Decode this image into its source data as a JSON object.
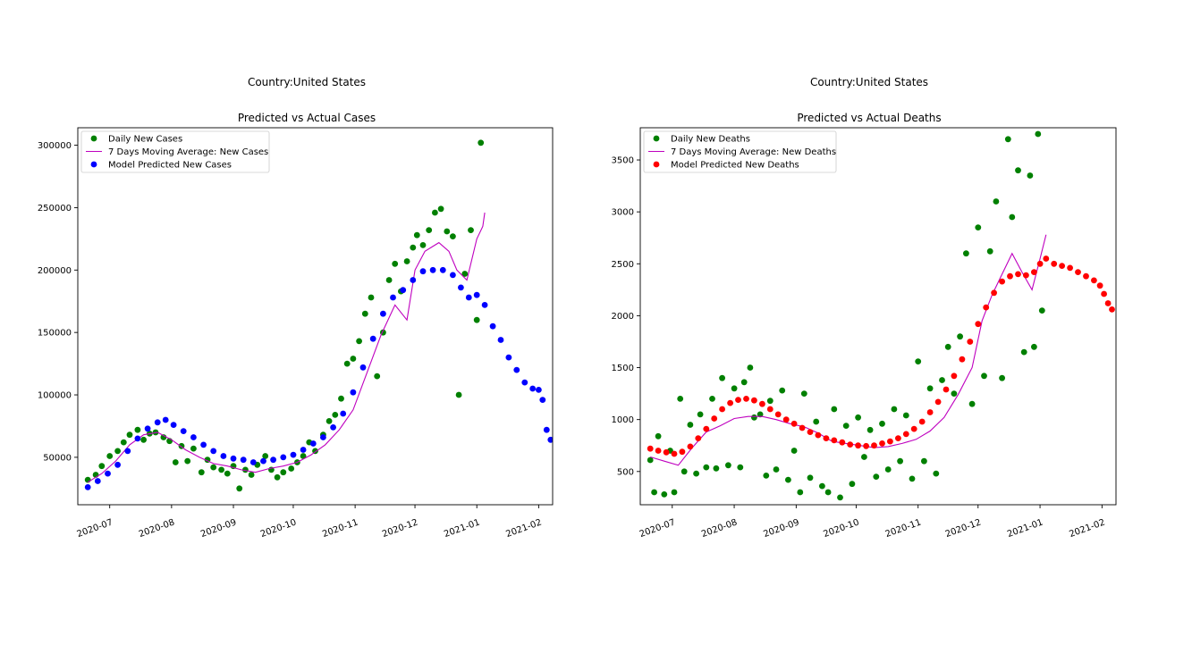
{
  "chart_data": [
    {
      "type": "scatter",
      "suptitle": "Country:United States",
      "title": "Predicted vs Actual Cases",
      "xlabel": "",
      "ylabel": "",
      "x_axis_type": "date",
      "xlim": [
        "2020-06-15",
        "2021-02-08"
      ],
      "ylim": [
        12000,
        314000
      ],
      "x_ticks": [
        "2020-07-01",
        "2020-08-01",
        "2020-09-01",
        "2020-10-01",
        "2020-11-01",
        "2020-12-01",
        "2021-01-01",
        "2021-02-01"
      ],
      "x_tick_labels": [
        "2020-07",
        "2020-08",
        "2020-09",
        "2020-10",
        "2020-11",
        "2020-12",
        "2021-01",
        "2021-02"
      ],
      "y_ticks": [
        50000,
        100000,
        150000,
        200000,
        250000,
        300000
      ],
      "y_tick_labels": [
        "50000",
        "100000",
        "150000",
        "200000",
        "250000",
        "300000"
      ],
      "grid": false,
      "legend_position": "top-left",
      "legend": [
        {
          "label": "Daily New Cases",
          "marker": "dot",
          "color": "#008000"
        },
        {
          "label": "7 Days Moving Average: New Cases",
          "marker": "line",
          "color": "#bf00bf"
        },
        {
          "label": "Model Predicted New Cases",
          "marker": "dot",
          "color": "#0000ff"
        }
      ],
      "series": [
        {
          "name": "Daily New Cases",
          "kind": "scatter",
          "color": "#008000",
          "x": [
            "2020-06-20",
            "2020-06-24",
            "2020-06-27",
            "2020-07-01",
            "2020-07-05",
            "2020-07-08",
            "2020-07-11",
            "2020-07-15",
            "2020-07-18",
            "2020-07-21",
            "2020-07-24",
            "2020-07-28",
            "2020-07-31",
            "2020-08-03",
            "2020-08-06",
            "2020-08-09",
            "2020-08-12",
            "2020-08-16",
            "2020-08-19",
            "2020-08-22",
            "2020-08-26",
            "2020-08-29",
            "2020-09-01",
            "2020-09-04",
            "2020-09-07",
            "2020-09-10",
            "2020-09-13",
            "2020-09-17",
            "2020-09-20",
            "2020-09-23",
            "2020-09-26",
            "2020-09-30",
            "2020-10-03",
            "2020-10-06",
            "2020-10-09",
            "2020-10-12",
            "2020-10-16",
            "2020-10-19",
            "2020-10-22",
            "2020-10-25",
            "2020-10-28",
            "2020-10-31",
            "2020-11-03",
            "2020-11-06",
            "2020-11-09",
            "2020-11-12",
            "2020-11-15",
            "2020-11-18",
            "2020-11-21",
            "2020-11-24",
            "2020-11-27",
            "2020-11-30",
            "2020-12-02",
            "2020-12-05",
            "2020-12-08",
            "2020-12-11",
            "2020-12-14",
            "2020-12-17",
            "2020-12-20",
            "2020-12-23",
            "2020-12-26",
            "2020-12-29",
            "2021-01-01",
            "2021-01-03"
          ],
          "y": [
            32000,
            36000,
            43000,
            51000,
            55000,
            62000,
            68000,
            72000,
            64000,
            69000,
            70000,
            66000,
            63000,
            46000,
            59000,
            47000,
            57000,
            38000,
            48000,
            42000,
            40000,
            37000,
            43000,
            25000,
            40000,
            36000,
            44000,
            51000,
            40000,
            34000,
            38000,
            41000,
            46000,
            51000,
            62000,
            55000,
            68000,
            79000,
            84000,
            97000,
            125000,
            129000,
            143000,
            165000,
            178000,
            115000,
            150000,
            192000,
            205000,
            183000,
            207000,
            218000,
            228000,
            220000,
            232000,
            246000,
            249000,
            231000,
            227000,
            100000,
            197000,
            232000,
            160000,
            302000
          ]
        },
        {
          "name": "7 Days Moving Average: New Cases",
          "kind": "line",
          "color": "#bf00bf",
          "x": [
            "2020-06-20",
            "2020-06-27",
            "2020-07-04",
            "2020-07-11",
            "2020-07-18",
            "2020-07-25",
            "2020-08-01",
            "2020-08-08",
            "2020-08-15",
            "2020-08-22",
            "2020-08-29",
            "2020-09-05",
            "2020-09-12",
            "2020-09-19",
            "2020-09-26",
            "2020-10-03",
            "2020-10-10",
            "2020-10-17",
            "2020-10-24",
            "2020-10-31",
            "2020-11-07",
            "2020-11-14",
            "2020-11-21",
            "2020-11-27",
            "2020-12-01",
            "2020-12-06",
            "2020-12-13",
            "2020-12-18",
            "2020-12-22",
            "2020-12-27",
            "2021-01-01",
            "2021-01-04",
            "2021-01-05"
          ],
          "y": [
            30000,
            37000,
            47000,
            60000,
            68000,
            70000,
            64000,
            56000,
            50000,
            45000,
            43000,
            40000,
            38000,
            41000,
            43000,
            46000,
            52000,
            60000,
            72000,
            88000,
            118000,
            148000,
            172000,
            160000,
            200000,
            215000,
            222000,
            215000,
            200000,
            192000,
            225000,
            235000,
            246000
          ]
        },
        {
          "name": "Model Predicted New Cases",
          "kind": "scatter",
          "color": "#0000ff",
          "x": [
            "2020-06-20",
            "2020-06-25",
            "2020-06-30",
            "2020-07-05",
            "2020-07-10",
            "2020-07-15",
            "2020-07-20",
            "2020-07-25",
            "2020-07-29",
            "2020-08-02",
            "2020-08-07",
            "2020-08-12",
            "2020-08-17",
            "2020-08-22",
            "2020-08-27",
            "2020-09-01",
            "2020-09-06",
            "2020-09-11",
            "2020-09-16",
            "2020-09-21",
            "2020-09-26",
            "2020-10-01",
            "2020-10-06",
            "2020-10-11",
            "2020-10-16",
            "2020-10-21",
            "2020-10-26",
            "2020-10-31",
            "2020-11-05",
            "2020-11-10",
            "2020-11-15",
            "2020-11-20",
            "2020-11-25",
            "2020-11-30",
            "2020-12-05",
            "2020-12-10",
            "2020-12-15",
            "2020-12-20",
            "2020-12-24",
            "2020-12-28",
            "2021-01-01",
            "2021-01-05",
            "2021-01-09",
            "2021-01-13",
            "2021-01-17",
            "2021-01-21",
            "2021-01-25",
            "2021-01-29",
            "2021-02-01",
            "2021-02-03",
            "2021-02-05",
            "2021-02-07"
          ],
          "y": [
            26000,
            31000,
            37000,
            44000,
            55000,
            65000,
            73000,
            78000,
            80000,
            76000,
            71000,
            66000,
            60000,
            55000,
            51000,
            49000,
            48000,
            46000,
            47000,
            48000,
            50000,
            52000,
            56000,
            61000,
            66000,
            74000,
            85000,
            102000,
            122000,
            145000,
            165000,
            178000,
            184000,
            192000,
            199000,
            200000,
            200000,
            196000,
            186000,
            178000,
            180000,
            172000,
            155000,
            144000,
            130000,
            120000,
            110000,
            105000,
            104000,
            96000,
            72000,
            64000
          ]
        }
      ]
    },
    {
      "type": "scatter",
      "suptitle": "Country:United States",
      "title": "Predicted vs Actual Deaths",
      "xlabel": "",
      "ylabel": "",
      "x_axis_type": "date",
      "xlim": [
        "2020-06-15",
        "2021-02-08"
      ],
      "ylim": [
        180,
        3810
      ],
      "x_ticks": [
        "2020-07-01",
        "2020-08-01",
        "2020-09-01",
        "2020-10-01",
        "2020-11-01",
        "2020-12-01",
        "2021-01-01",
        "2021-02-01"
      ],
      "x_tick_labels": [
        "2020-07",
        "2020-08",
        "2020-09",
        "2020-10",
        "2020-11",
        "2020-12",
        "2021-01",
        "2021-02"
      ],
      "y_ticks": [
        500,
        1000,
        1500,
        2000,
        2500,
        3000,
        3500
      ],
      "y_tick_labels": [
        "500",
        "1000",
        "1500",
        "2000",
        "2500",
        "3000",
        "3500"
      ],
      "grid": false,
      "legend_position": "top-left",
      "legend": [
        {
          "label": "Daily New Deaths",
          "marker": "dot",
          "color": "#008000"
        },
        {
          "label": "7 Days Moving Average: New Deaths",
          "marker": "line",
          "color": "#bf00bf"
        },
        {
          "label": "Model Predicted New Deaths",
          "marker": "dot",
          "color": "#ff0000"
        }
      ],
      "series": [
        {
          "name": "Daily New Deaths",
          "kind": "scatter",
          "color": "#008000",
          "x": [
            "2020-06-20",
            "2020-06-22",
            "2020-06-24",
            "2020-06-27",
            "2020-06-30",
            "2020-07-02",
            "2020-07-05",
            "2020-07-07",
            "2020-07-10",
            "2020-07-13",
            "2020-07-15",
            "2020-07-18",
            "2020-07-21",
            "2020-07-23",
            "2020-07-26",
            "2020-07-29",
            "2020-08-01",
            "2020-08-04",
            "2020-08-06",
            "2020-08-09",
            "2020-08-11",
            "2020-08-14",
            "2020-08-17",
            "2020-08-19",
            "2020-08-22",
            "2020-08-25",
            "2020-08-28",
            "2020-08-31",
            "2020-09-03",
            "2020-09-05",
            "2020-09-08",
            "2020-09-11",
            "2020-09-14",
            "2020-09-17",
            "2020-09-20",
            "2020-09-23",
            "2020-09-26",
            "2020-09-29",
            "2020-10-02",
            "2020-10-05",
            "2020-10-08",
            "2020-10-11",
            "2020-10-14",
            "2020-10-17",
            "2020-10-20",
            "2020-10-23",
            "2020-10-26",
            "2020-10-29",
            "2020-11-01",
            "2020-11-04",
            "2020-11-07",
            "2020-11-10",
            "2020-11-13",
            "2020-11-16",
            "2020-11-19",
            "2020-11-22",
            "2020-11-25",
            "2020-11-28",
            "2020-12-01",
            "2020-12-04",
            "2020-12-07",
            "2020-12-10",
            "2020-12-13",
            "2020-12-16",
            "2020-12-18",
            "2020-12-21",
            "2020-12-24",
            "2020-12-27",
            "2020-12-29",
            "2020-12-31",
            "2021-01-02"
          ],
          "y": [
            610,
            300,
            840,
            280,
            700,
            300,
            1200,
            500,
            950,
            480,
            1050,
            540,
            1200,
            530,
            1400,
            560,
            1300,
            540,
            1360,
            1500,
            1020,
            1050,
            460,
            1180,
            520,
            1280,
            420,
            700,
            300,
            1250,
            440,
            980,
            360,
            300,
            1100,
            250,
            940,
            380,
            1020,
            640,
            900,
            450,
            960,
            520,
            1100,
            600,
            1040,
            430,
            1560,
            600,
            1300,
            480,
            1380,
            1700,
            1250,
            1800,
            2600,
            1150,
            2850,
            1420,
            2620,
            3100,
            1400,
            3700,
            2950,
            3400,
            1650,
            3350,
            1700,
            3750,
            2050
          ]
        },
        {
          "name": "7 Days Moving Average: New Deaths",
          "kind": "line",
          "color": "#bf00bf",
          "x": [
            "2020-06-20",
            "2020-06-27",
            "2020-07-04",
            "2020-07-11",
            "2020-07-18",
            "2020-07-25",
            "2020-08-01",
            "2020-08-08",
            "2020-08-15",
            "2020-08-22",
            "2020-08-29",
            "2020-09-05",
            "2020-09-12",
            "2020-09-19",
            "2020-09-26",
            "2020-10-03",
            "2020-10-10",
            "2020-10-17",
            "2020-10-24",
            "2020-10-31",
            "2020-11-07",
            "2020-11-14",
            "2020-11-21",
            "2020-11-28",
            "2020-12-03",
            "2020-12-08",
            "2020-12-13",
            "2020-12-18",
            "2020-12-23",
            "2020-12-28",
            "2021-01-01",
            "2021-01-04"
          ],
          "y": [
            640,
            600,
            560,
            730,
            880,
            940,
            1010,
            1030,
            1030,
            1000,
            960,
            930,
            870,
            790,
            770,
            750,
            730,
            740,
            770,
            810,
            890,
            1020,
            1240,
            1500,
            1950,
            2200,
            2400,
            2600,
            2420,
            2250,
            2550,
            2780
          ]
        },
        {
          "name": "Model Predicted New Deaths",
          "kind": "scatter",
          "color": "#ff0000",
          "x": [
            "2020-06-20",
            "2020-06-24",
            "2020-06-28",
            "2020-07-02",
            "2020-07-06",
            "2020-07-10",
            "2020-07-14",
            "2020-07-18",
            "2020-07-22",
            "2020-07-26",
            "2020-07-30",
            "2020-08-03",
            "2020-08-07",
            "2020-08-11",
            "2020-08-15",
            "2020-08-19",
            "2020-08-23",
            "2020-08-27",
            "2020-08-31",
            "2020-09-04",
            "2020-09-08",
            "2020-09-12",
            "2020-09-16",
            "2020-09-20",
            "2020-09-24",
            "2020-09-28",
            "2020-10-02",
            "2020-10-06",
            "2020-10-10",
            "2020-10-14",
            "2020-10-18",
            "2020-10-22",
            "2020-10-26",
            "2020-10-30",
            "2020-11-03",
            "2020-11-07",
            "2020-11-11",
            "2020-11-15",
            "2020-11-19",
            "2020-11-23",
            "2020-11-27",
            "2020-12-01",
            "2020-12-05",
            "2020-12-09",
            "2020-12-13",
            "2020-12-17",
            "2020-12-21",
            "2020-12-25",
            "2020-12-29",
            "2021-01-01",
            "2021-01-04",
            "2021-01-08",
            "2021-01-12",
            "2021-01-16",
            "2021-01-20",
            "2021-01-24",
            "2021-01-28",
            "2021-01-31",
            "2021-02-02",
            "2021-02-04",
            "2021-02-06"
          ],
          "y": [
            720,
            700,
            685,
            670,
            690,
            740,
            820,
            910,
            1010,
            1100,
            1160,
            1190,
            1200,
            1185,
            1150,
            1100,
            1050,
            1000,
            960,
            920,
            880,
            850,
            820,
            800,
            780,
            760,
            750,
            745,
            750,
            770,
            790,
            820,
            860,
            910,
            980,
            1070,
            1170,
            1290,
            1420,
            1580,
            1750,
            1920,
            2080,
            2220,
            2330,
            2380,
            2400,
            2390,
            2420,
            2500,
            2550,
            2500,
            2480,
            2460,
            2420,
            2380,
            2340,
            2290,
            2210,
            2120,
            2060
          ]
        }
      ]
    }
  ]
}
